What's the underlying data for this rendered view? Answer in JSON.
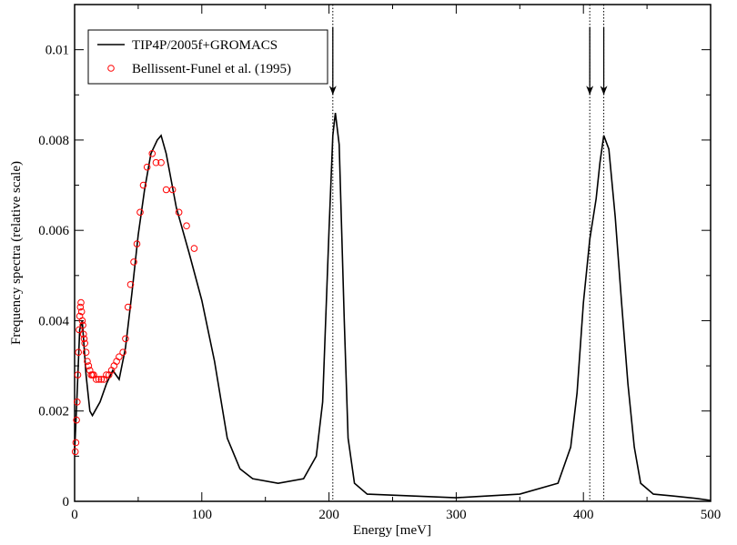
{
  "chart_data": {
    "type": "line",
    "xlabel": "Energy [meV]",
    "ylabel": "Frequency spectra (relative scale)",
    "xlim": [
      0,
      500
    ],
    "ylim": [
      0,
      0.011
    ],
    "xticks": [
      0,
      100,
      200,
      300,
      400,
      500
    ],
    "xminorticks": [
      50,
      150,
      250,
      350,
      450
    ],
    "yticks": [
      0,
      0.002,
      0.004,
      0.006,
      0.008,
      0.01
    ],
    "yminorticks": [
      0.001,
      0.003,
      0.005,
      0.007,
      0.009
    ],
    "legend": "upper left",
    "series": [
      {
        "name": "TIP4P/2005f+GROMACS",
        "type": "line",
        "color": "#000000",
        "x": [
          0,
          2,
          4,
          6,
          9,
          12,
          14,
          20,
          25,
          30,
          35,
          40,
          45,
          50,
          55,
          60,
          65,
          68,
          72,
          80,
          90,
          100,
          110,
          120,
          130,
          140,
          160,
          180,
          190,
          195,
          200,
          203,
          205,
          208,
          212,
          215,
          220,
          230,
          300,
          350,
          380,
          390,
          395,
          400,
          405,
          410,
          413,
          416,
          420,
          425,
          430,
          435,
          440,
          445,
          455,
          470,
          490,
          500
        ],
        "values": [
          0.0011,
          0.0024,
          0.0038,
          0.004,
          0.0028,
          0.002,
          0.0019,
          0.0022,
          0.0026,
          0.0029,
          0.0027,
          0.0034,
          0.0046,
          0.0059,
          0.0069,
          0.0077,
          0.008,
          0.0081,
          0.0077,
          0.0065,
          0.0055,
          0.00445,
          0.0031,
          0.0014,
          0.00072,
          0.0005,
          0.0004,
          0.0005,
          0.001,
          0.0022,
          0.006,
          0.0081,
          0.0086,
          0.0079,
          0.004,
          0.0014,
          0.0004,
          0.00016,
          8e-05,
          0.00016,
          0.0004,
          0.0012,
          0.0024,
          0.0044,
          0.0058,
          0.0067,
          0.0075,
          0.0081,
          0.0078,
          0.0063,
          0.0044,
          0.0026,
          0.0012,
          0.0004,
          0.00016,
          0.00012,
          6e-05,
          2e-05
        ]
      },
      {
        "name": "Bellissent-Funel et al. (1995)",
        "type": "scatter",
        "color": "#ff0000",
        "x": [
          0.5,
          1,
          1.5,
          2,
          2.5,
          3,
          3.5,
          4,
          4.5,
          5,
          5.5,
          6,
          6.5,
          7,
          7.5,
          8,
          9,
          10,
          11,
          12,
          13,
          14,
          15,
          17,
          19,
          21,
          23,
          25,
          27,
          29,
          31,
          33,
          35,
          38,
          40,
          42,
          44,
          46.5,
          49,
          51.5,
          54,
          57,
          61,
          64,
          68,
          72,
          77,
          82,
          88,
          94
        ],
        "values": [
          0.0011,
          0.0013,
          0.0018,
          0.0022,
          0.0028,
          0.0033,
          0.0038,
          0.0041,
          0.0043,
          0.0044,
          0.0042,
          0.004,
          0.0039,
          0.0037,
          0.0036,
          0.0035,
          0.0033,
          0.0031,
          0.003,
          0.0029,
          0.0028,
          0.0028,
          0.0028,
          0.0027,
          0.0027,
          0.0027,
          0.0027,
          0.0028,
          0.0028,
          0.0029,
          0.003,
          0.0031,
          0.0032,
          0.0033,
          0.0036,
          0.0043,
          0.0048,
          0.0053,
          0.0057,
          0.0064,
          0.007,
          0.0074,
          0.0077,
          0.0075,
          0.0075,
          0.0069,
          0.0069,
          0.0064,
          0.0061,
          0.0056
        ]
      }
    ],
    "markers": [
      203,
      405,
      416
    ],
    "arrow_from": 0.0105,
    "arrow_to": 0.009
  }
}
